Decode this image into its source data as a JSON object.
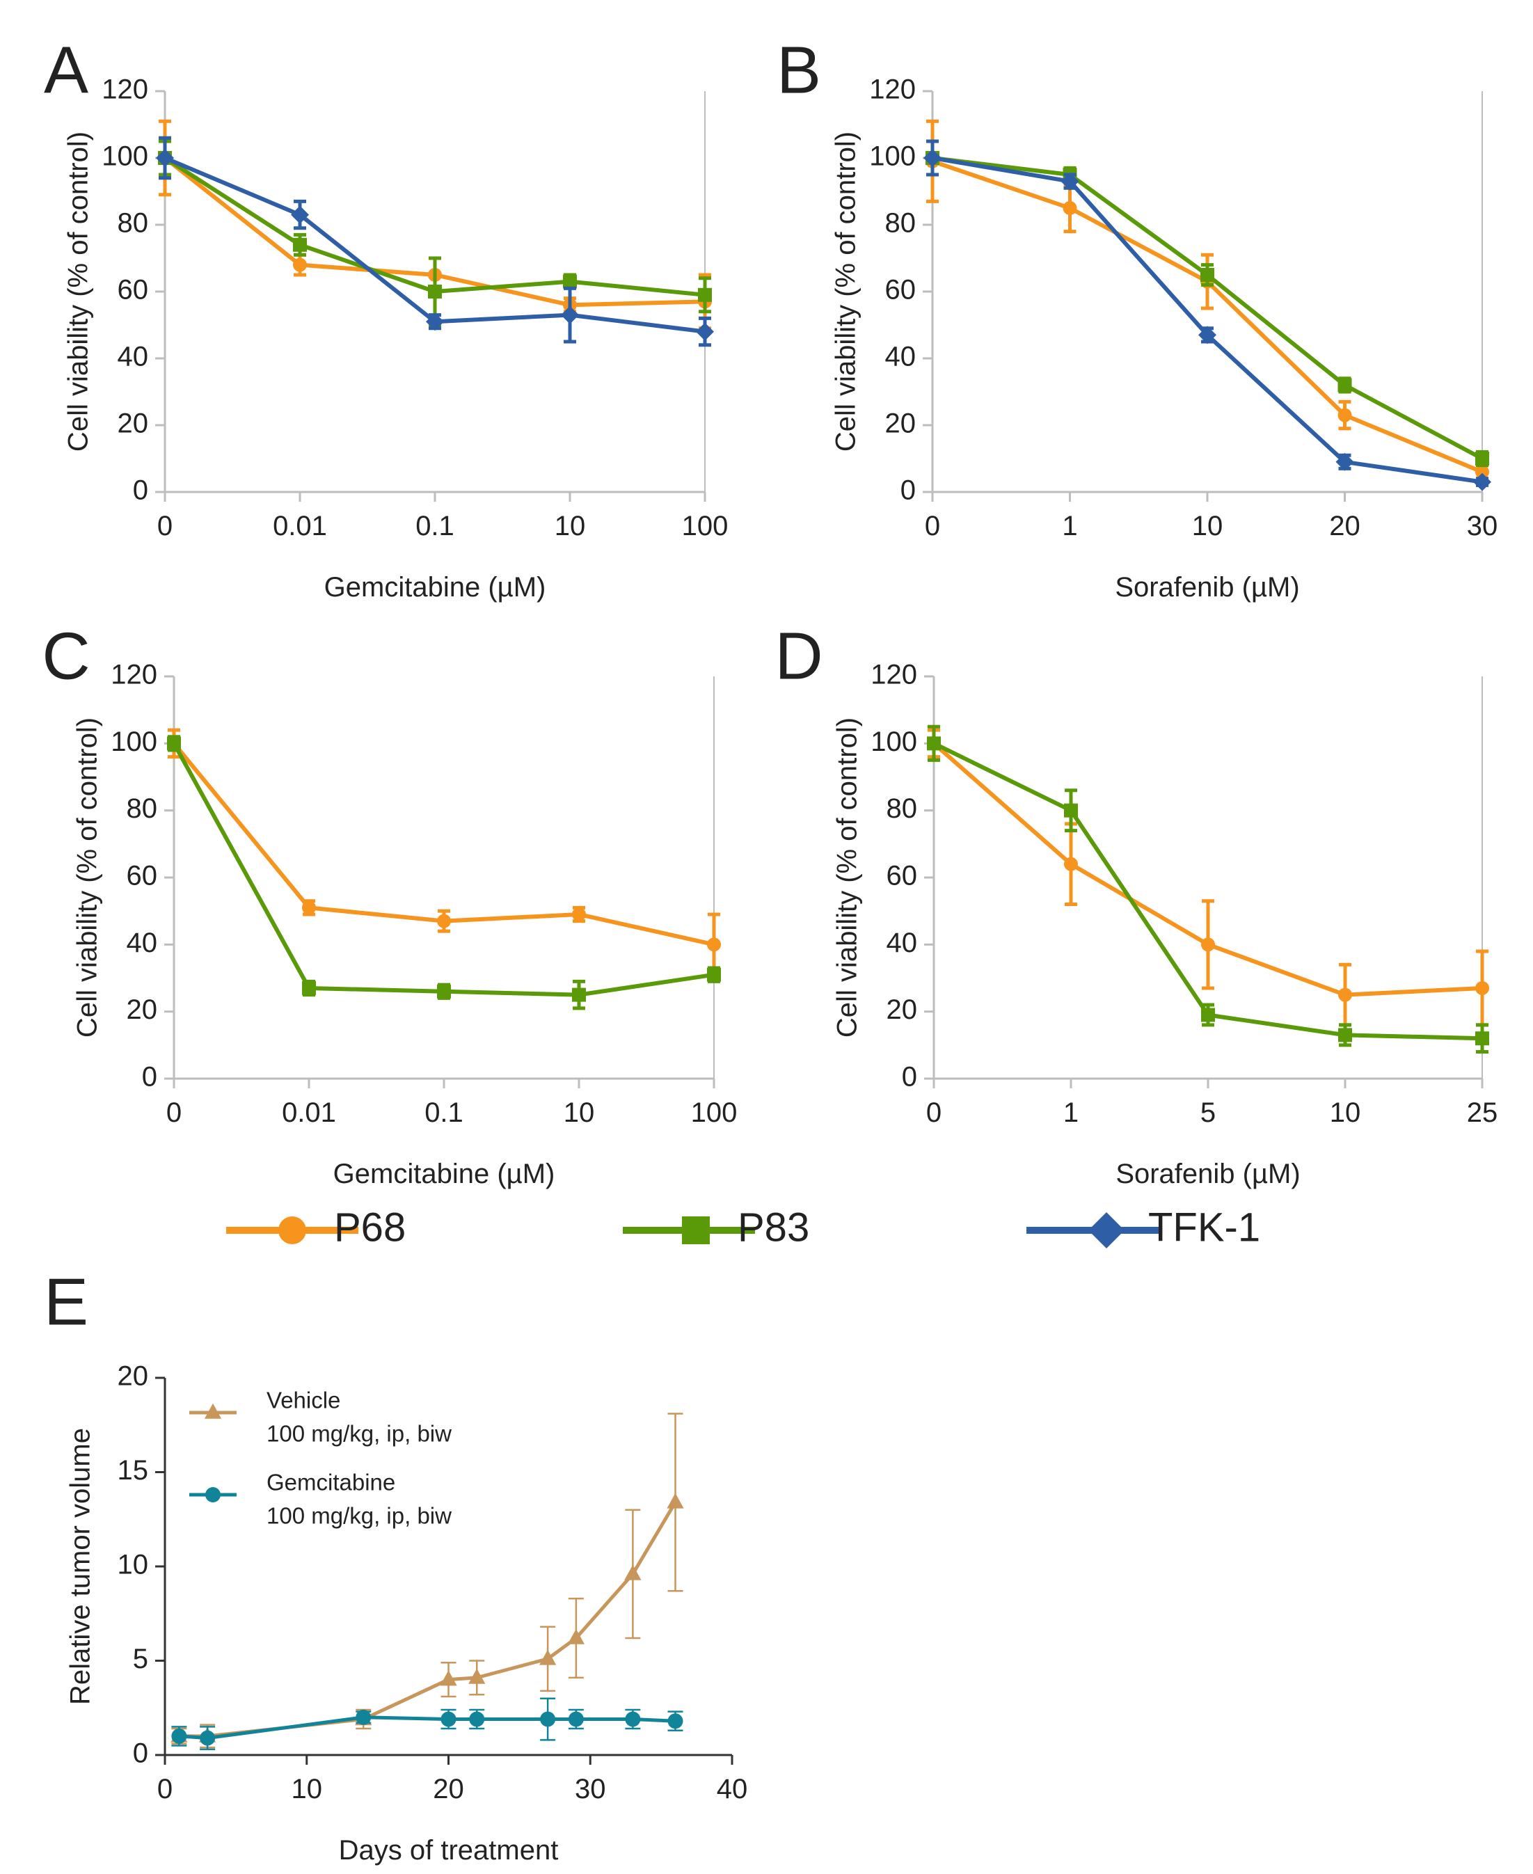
{
  "colors": {
    "P68": "#f7941d",
    "P83": "#5a9a08",
    "TFK-1": "#2e5fa6",
    "vehicle": "#c8955a",
    "gemcitabine": "#12849a",
    "axis": "#bdbdbd",
    "axis_e": "#333333"
  },
  "legend_main": [
    {
      "label": "P68",
      "marker": "circle",
      "color": "#f7941d"
    },
    {
      "label": "P83",
      "marker": "square",
      "color": "#5a9a08"
    },
    {
      "label": "TFK-1",
      "marker": "diamond",
      "color": "#2e5fa6"
    }
  ],
  "chart_data": [
    {
      "panel": "A",
      "type": "line",
      "title": "",
      "xlabel": "Gemcitabine (µM)",
      "ylabel": "Cell viability (% of control)",
      "categories": [
        "0",
        "0.01",
        "0.1",
        "10",
        "100"
      ],
      "ylim": [
        0,
        120
      ],
      "yticks": [
        0,
        20,
        40,
        60,
        80,
        100,
        120
      ],
      "series": [
        {
          "name": "P68",
          "values": [
            100,
            68,
            65,
            56,
            57
          ],
          "errors": [
            11,
            3,
            5,
            2,
            8
          ]
        },
        {
          "name": "P83",
          "values": [
            100,
            74,
            60,
            63,
            59
          ],
          "errors": [
            5,
            3,
            10,
            2,
            5
          ]
        },
        {
          "name": "TFK-1",
          "values": [
            100,
            83,
            51,
            53,
            48
          ],
          "errors": [
            6,
            4,
            2,
            8,
            4
          ]
        }
      ]
    },
    {
      "panel": "B",
      "type": "line",
      "title": "",
      "xlabel": "Sorafenib (µM)",
      "ylabel": "Cell viability (% of control)",
      "categories": [
        "0",
        "1",
        "10",
        "20",
        "30"
      ],
      "ylim": [
        0,
        120
      ],
      "yticks": [
        0,
        20,
        40,
        60,
        80,
        100,
        120
      ],
      "series": [
        {
          "name": "P68",
          "values": [
            99,
            85,
            63,
            23,
            6
          ],
          "errors": [
            12,
            7,
            8,
            4,
            2
          ]
        },
        {
          "name": "P83",
          "values": [
            100,
            95,
            65,
            32,
            10
          ],
          "errors": [
            5,
            2,
            3,
            2,
            2
          ]
        },
        {
          "name": "TFK-1",
          "values": [
            100,
            93,
            47,
            9,
            3
          ],
          "errors": [
            5,
            2,
            2,
            2,
            1
          ]
        }
      ]
    },
    {
      "panel": "C",
      "type": "line",
      "title": "",
      "xlabel": "Gemcitabine (µM)",
      "ylabel": "Cell viability (% of control)",
      "categories": [
        "0",
        "0.01",
        "0.1",
        "10",
        "100"
      ],
      "ylim": [
        0,
        120
      ],
      "yticks": [
        0,
        20,
        40,
        60,
        80,
        100,
        120
      ],
      "series": [
        {
          "name": "P68",
          "values": [
            100,
            51,
            47,
            49,
            40
          ],
          "errors": [
            4,
            2,
            3,
            2,
            9
          ]
        },
        {
          "name": "P83",
          "values": [
            100,
            27,
            26,
            25,
            31
          ],
          "errors": [
            2,
            2,
            2,
            4,
            2
          ]
        }
      ]
    },
    {
      "panel": "D",
      "type": "line",
      "title": "",
      "xlabel": "Sorafenib (µM)",
      "ylabel": "Cell viability (% of control)",
      "categories": [
        "0",
        "1",
        "5",
        "10",
        "25"
      ],
      "ylim": [
        0,
        120
      ],
      "yticks": [
        0,
        20,
        40,
        60,
        80,
        100,
        120
      ],
      "series": [
        {
          "name": "P68",
          "values": [
            100,
            64,
            40,
            25,
            27
          ],
          "errors": [
            4,
            12,
            13,
            9,
            11
          ]
        },
        {
          "name": "P83",
          "values": [
            100,
            80,
            19,
            13,
            12
          ],
          "errors": [
            5,
            6,
            3,
            3,
            4
          ]
        }
      ]
    },
    {
      "panel": "E",
      "type": "line",
      "title": "",
      "xlabel": "Days of treatment",
      "ylabel": "Relative tumor volume",
      "xlim": [
        0,
        40
      ],
      "xticks": [
        0,
        10,
        20,
        30,
        40
      ],
      "ylim": [
        0,
        20
      ],
      "yticks": [
        0,
        5,
        10,
        15,
        20
      ],
      "legend": [
        {
          "name": "Vehicle",
          "detail": "100 mg/kg, ip, biw"
        },
        {
          "name": "Gemcitabine",
          "detail": "100 mg/kg, ip, biw"
        }
      ],
      "series": [
        {
          "name": "Vehicle",
          "marker": "triangle",
          "x": [
            1,
            3,
            14,
            20,
            22,
            27,
            29,
            33,
            36
          ],
          "values": [
            1,
            1,
            1.9,
            4,
            4.1,
            5.1,
            6.2,
            9.6,
            13.4
          ],
          "errors": [
            0.4,
            0.6,
            0.5,
            0.9,
            0.9,
            1.7,
            2.1,
            3.4,
            4.7
          ]
        },
        {
          "name": "Gemcitabine",
          "marker": "circle",
          "x": [
            1,
            3,
            14,
            20,
            22,
            27,
            29,
            33,
            36
          ],
          "values": [
            1,
            0.9,
            2,
            1.9,
            1.9,
            1.9,
            1.9,
            1.9,
            1.8
          ],
          "errors": [
            0.5,
            0.6,
            0.3,
            0.5,
            0.5,
            1.1,
            0.5,
            0.5,
            0.5
          ]
        }
      ]
    }
  ]
}
